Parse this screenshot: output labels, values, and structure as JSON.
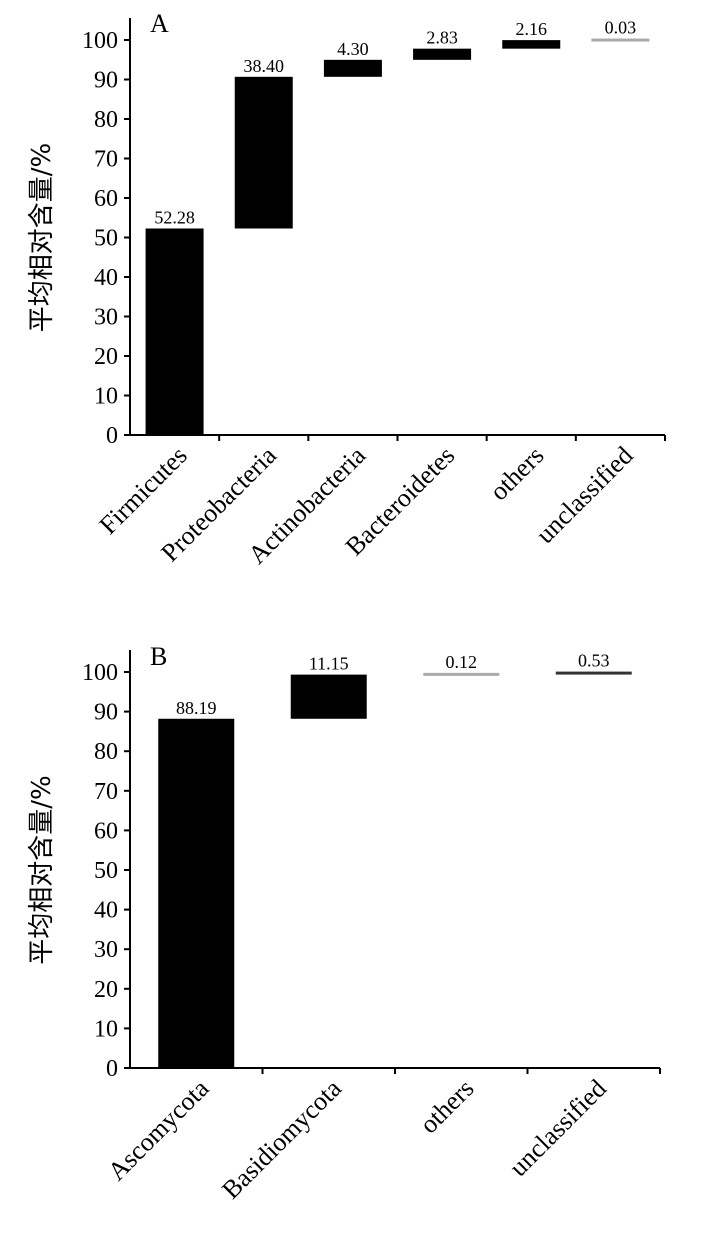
{
  "chart_data": [
    {
      "type": "bar",
      "variant": "waterfall",
      "panel_label": "A",
      "ylabel": "平均相对含量/%",
      "ylim": [
        0,
        100
      ],
      "yticks": [
        0,
        10,
        20,
        30,
        40,
        50,
        60,
        70,
        80,
        90,
        100
      ],
      "categories": [
        "Firmicutes",
        "Proteobacteria",
        "Actinobacteria",
        "Bacteroidetes",
        "others",
        "unclassified"
      ],
      "values": [
        52.28,
        38.4,
        4.3,
        2.83,
        2.16,
        0.03
      ],
      "labels": [
        "52.28",
        "38.40",
        "4.30",
        "2.83",
        "2.16",
        "0.03"
      ],
      "colors": [
        "#000000",
        "#000000",
        "#000000",
        "#000000",
        "#000000",
        "#aaaaaa"
      ],
      "grid": false
    },
    {
      "type": "bar",
      "variant": "waterfall",
      "panel_label": "B",
      "ylabel": "平均相对含量/%",
      "ylim": [
        0,
        100
      ],
      "yticks": [
        0,
        10,
        20,
        30,
        40,
        50,
        60,
        70,
        80,
        90,
        100
      ],
      "categories": [
        "Ascomycota",
        "Basidiomycota",
        "others",
        "unclassified"
      ],
      "values": [
        88.19,
        11.15,
        0.12,
        0.53
      ],
      "labels": [
        "88.19",
        "11.15",
        "0.12",
        "0.53"
      ],
      "colors": [
        "#000000",
        "#000000",
        "#aaaaaa",
        "#333333"
      ],
      "grid": false
    }
  ]
}
